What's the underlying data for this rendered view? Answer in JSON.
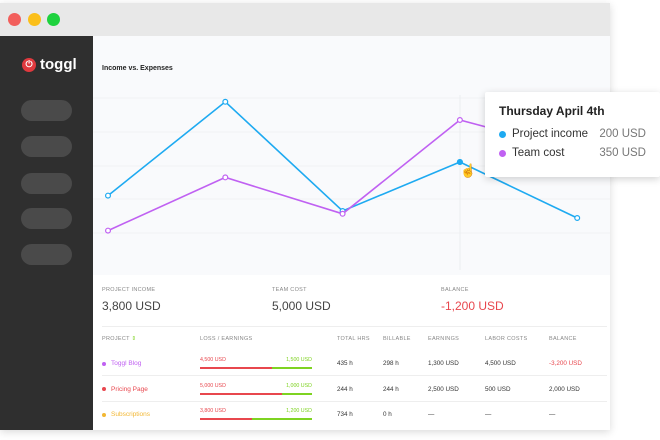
{
  "app": {
    "logo": "toggl"
  },
  "chart": {
    "title": "Income vs. Expenses"
  },
  "chart_data": {
    "type": "line",
    "title": "Income vs. Expenses",
    "grid": true,
    "series": [
      {
        "name": "Project income",
        "color": "#1eaaf1",
        "values": [
          80,
          415,
          25,
          200,
          0
        ]
      },
      {
        "name": "Team cost",
        "color": "#c061f2",
        "values": [
          -45,
          145,
          15,
          350
        ]
      }
    ]
  },
  "tooltip": {
    "title": "Thursday April 4th",
    "rows": [
      {
        "label": "Project income",
        "value": "200 USD",
        "color": "#1eaaf1"
      },
      {
        "label": "Team cost",
        "value": "350 USD",
        "color": "#c061f2"
      }
    ]
  },
  "summary": [
    {
      "label": "PROJECT INCOME",
      "value": "3,800 USD"
    },
    {
      "label": "TEAM COST",
      "value": "5,000 USD"
    },
    {
      "label": "BALANCE",
      "value": "-1,200 USD",
      "color": "#e8474e"
    }
  ],
  "table": {
    "headers": [
      "PROJECT",
      "LOSS / EARNINGS",
      "TOTAL HRS",
      "BILLABLE",
      "EARNINGS",
      "LABOR COSTS",
      "BALANCE"
    ],
    "rows": [
      {
        "project": "Toggl Blog",
        "color": "#c061f2",
        "loss": "4,500 USD",
        "earn": "1,500 USD",
        "loss_frac": 0.64,
        "total": "435 h",
        "billable": "298 h",
        "earnings": "1,300 USD",
        "labor": "4,500 USD",
        "balance": "-3,200 USD",
        "neg": true
      },
      {
        "project": "Pricing Page",
        "color": "#e8474e",
        "loss": "5,000 USD",
        "earn": "1,000 USD",
        "loss_frac": 0.73,
        "total": "244 h",
        "billable": "244 h",
        "earnings": "2,500 USD",
        "labor": "500 USD",
        "balance": "2,000 USD",
        "neg": false
      },
      {
        "project": "Subscriptions",
        "color": "#f2b733",
        "loss": "3,800 USD",
        "earn": "1,200 USD",
        "loss_frac": 0.46,
        "total": "734 h",
        "billable": "0 h",
        "earnings": "—",
        "labor": "—",
        "balance": "—",
        "neg": false
      }
    ]
  }
}
